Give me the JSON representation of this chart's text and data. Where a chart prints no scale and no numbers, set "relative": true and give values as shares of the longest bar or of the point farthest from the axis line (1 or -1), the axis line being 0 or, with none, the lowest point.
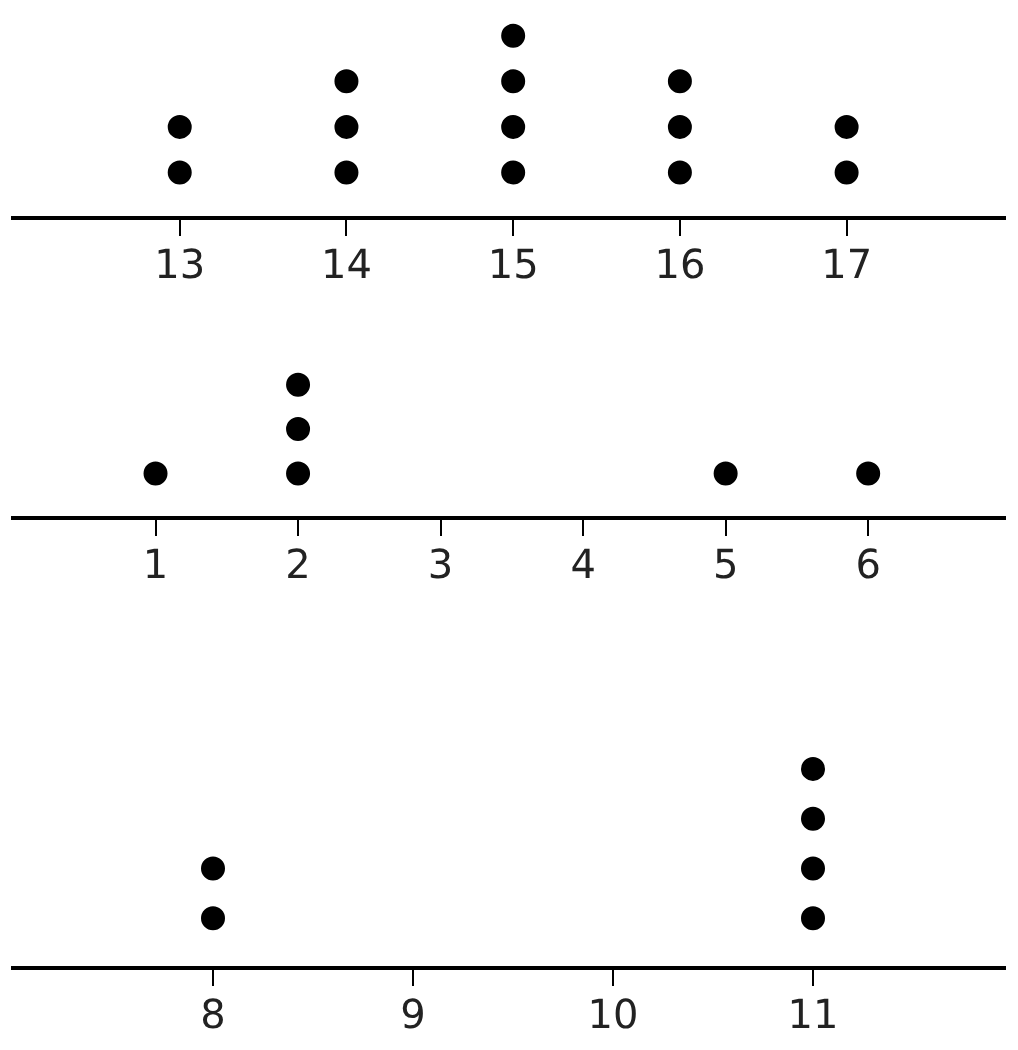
{
  "chart_data": [
    {
      "type": "scatter",
      "relative": true,
      "x": [
        13,
        13,
        14,
        14,
        14,
        15,
        15,
        15,
        15,
        16,
        16,
        16,
        17,
        17
      ],
      "values": [
        0.25,
        0.5,
        0.25,
        0.5,
        0.75,
        0.25,
        0.5,
        0.75,
        1,
        0.25,
        0.5,
        0.75,
        0.25,
        0.5
      ],
      "color": "#000000",
      "xlim": [
        12,
        17.95
      ],
      "xticks": [
        13,
        14,
        15,
        16,
        17
      ],
      "tick_labels": "x",
      "marker": "circle",
      "grid": false
    },
    {
      "type": "scatter",
      "relative": true,
      "x": [
        1,
        2,
        2,
        2,
        5,
        6
      ],
      "values": [
        0.333,
        0.333,
        0.667,
        1,
        0.333,
        0.333
      ],
      "color": "#000000",
      "xlim": [
        0,
        6.96
      ],
      "xticks": [
        1,
        2,
        3,
        4,
        5,
        6
      ],
      "tick_labels": "x",
      "marker": "circle",
      "grid": false
    },
    {
      "type": "scatter",
      "relative": true,
      "x": [
        8,
        8,
        11,
        11,
        11,
        11
      ],
      "values": [
        0.25,
        0.5,
        0.25,
        0.5,
        0.75,
        1
      ],
      "color": "#000000",
      "xlim": [
        7,
        11.96
      ],
      "xticks": [
        8,
        9,
        10,
        11
      ],
      "tick_labels": "x",
      "marker": "circle",
      "grid": false
    }
  ]
}
